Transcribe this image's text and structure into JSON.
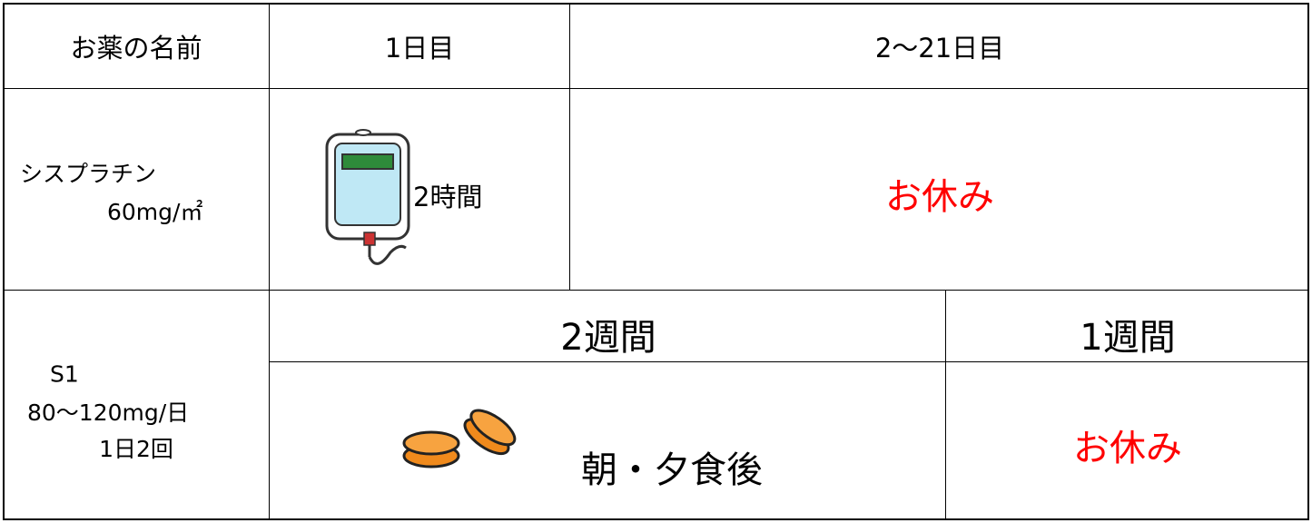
{
  "table": {
    "header": [
      "お薬の名前",
      "1日目",
      "2〜21日目"
    ],
    "rows": [
      {
        "name": [
          "シスプラチン",
          "60mg/㎡"
        ],
        "day1": "2時間",
        "rest": "お休み"
      },
      {
        "name": [
          "S1",
          "80〜120mg/日",
          "1日2回"
        ],
        "period1": "2週間",
        "period2": "1週間",
        "timing": "朝・夕食後",
        "rest": "お休み"
      }
    ]
  }
}
